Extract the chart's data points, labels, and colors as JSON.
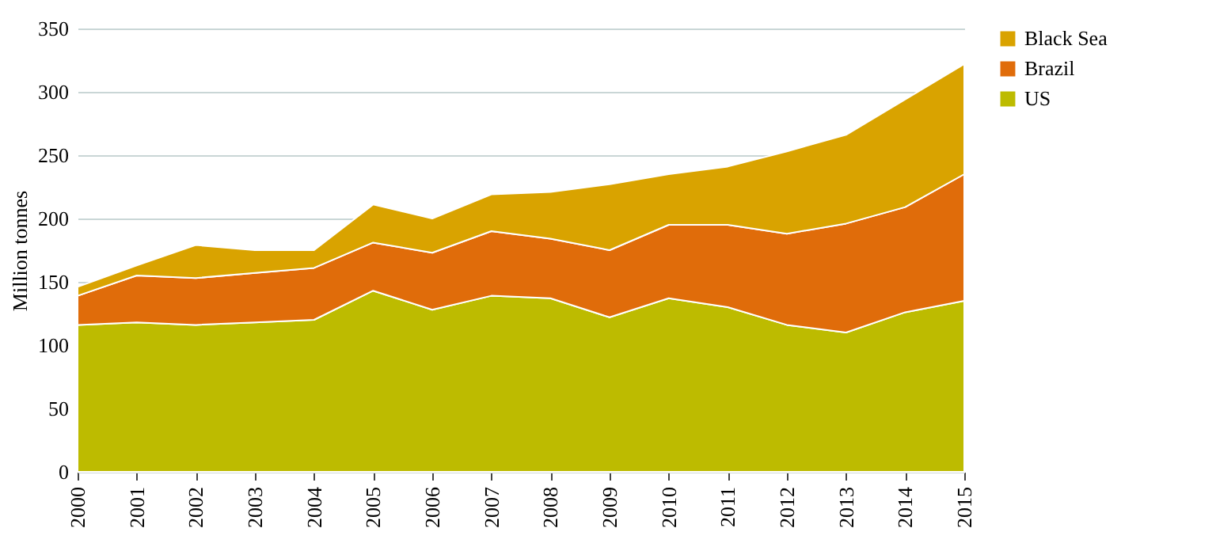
{
  "chart_data": {
    "type": "area",
    "stacked": true,
    "ylabel": "Million tonnes",
    "categories": [
      "2000",
      "2001",
      "2002",
      "2003",
      "2004",
      "2005",
      "2006",
      "2007",
      "2008",
      "2009",
      "2010",
      "2011",
      "2012",
      "2013",
      "2014",
      "2015"
    ],
    "series": [
      {
        "name": "US",
        "color": "#bdbb00",
        "values": [
          116,
          118,
          116,
          118,
          120,
          143,
          128,
          139,
          137,
          122,
          137,
          130,
          116,
          110,
          126,
          135
        ]
      },
      {
        "name": "Brazil",
        "color": "#e06c0a",
        "values": [
          23,
          37,
          37,
          39,
          41,
          38,
          45,
          51,
          47,
          53,
          58,
          65,
          72,
          86,
          83,
          100
        ]
      },
      {
        "name": "Black Sea",
        "color": "#d9a300",
        "values": [
          7,
          8,
          26,
          18,
          14,
          30,
          27,
          29,
          37,
          52,
          40,
          46,
          65,
          70,
          85,
          87
        ]
      }
    ],
    "ylim": [
      0,
      350
    ],
    "yticks": [
      0,
      50,
      100,
      150,
      200,
      250,
      300,
      350
    ],
    "grid": "y",
    "legend": "top right"
  }
}
